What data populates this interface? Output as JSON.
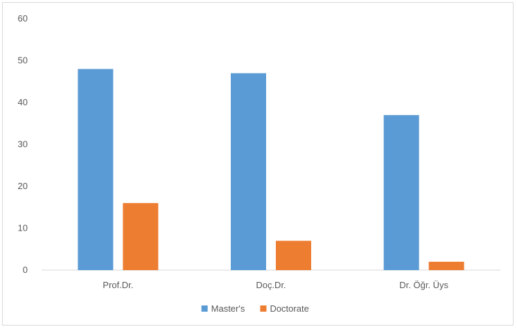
{
  "chart_data": {
    "type": "bar",
    "title": "",
    "xlabel": "",
    "ylabel": "",
    "categories": [
      "Prof.Dr.",
      "Doç.Dr.",
      "Dr. Öğr. Üys"
    ],
    "series": [
      {
        "name": "Master's",
        "values": [
          48,
          47,
          37
        ],
        "color": "#5B9BD5"
      },
      {
        "name": "Doctorate",
        "values": [
          16,
          7,
          2
        ],
        "color": "#ED7D31"
      }
    ],
    "ylim": [
      0,
      60
    ],
    "yticks": [
      "0",
      "10",
      "20",
      "30",
      "40",
      "50",
      "60"
    ],
    "grid": false,
    "legend_position": "bottom"
  }
}
